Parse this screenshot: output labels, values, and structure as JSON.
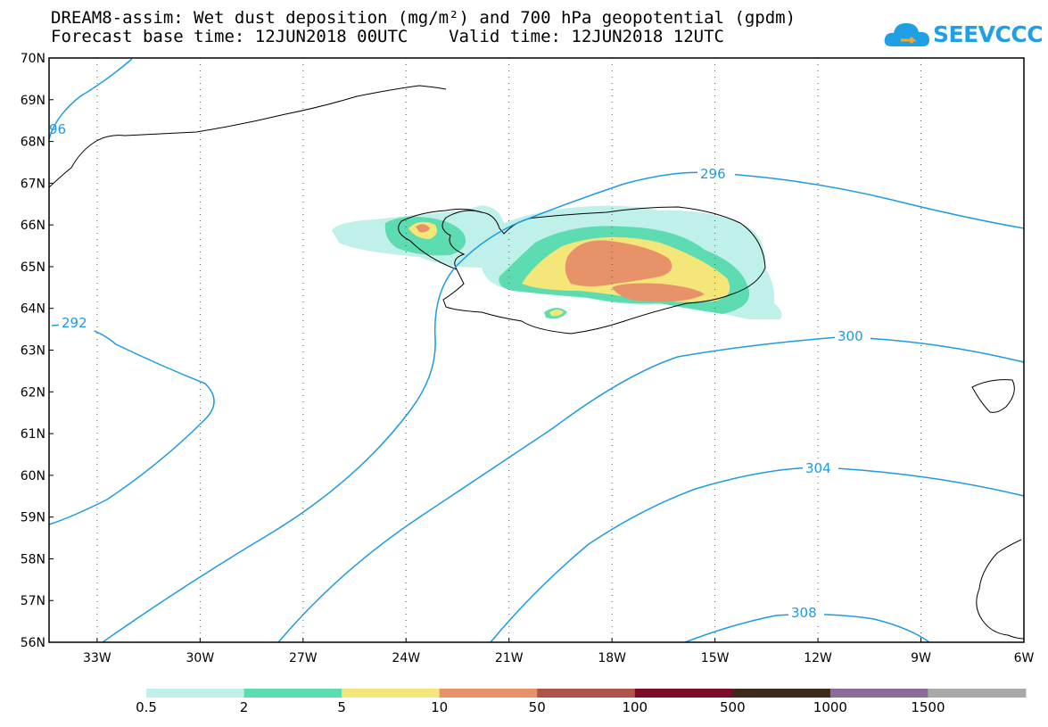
{
  "title": {
    "line1": "DREAM8-assim: Wet dust deposition (mg/m²) and 700 hPa geopotential (gpdm)",
    "line2": "Forecast base time: 12JUN2018 00UTC    Valid time: 12JUN2018 12UTC"
  },
  "logo": {
    "text": "SEEVCCC"
  },
  "map": {
    "lat_labels": [
      "70N",
      "69N",
      "68N",
      "67N",
      "66N",
      "65N",
      "64N",
      "63N",
      "62N",
      "61N",
      "60N",
      "59N",
      "58N",
      "57N",
      "56N"
    ],
    "lon_labels": [
      "33W",
      "30W",
      "27W",
      "24W",
      "21W",
      "18W",
      "15W",
      "12W",
      "9W",
      "6W"
    ],
    "lat_range": [
      56,
      70
    ],
    "lon_range": [
      -34.4,
      -6
    ],
    "contour_labels": [
      "296",
      "292",
      "300",
      "304",
      "308",
      "96"
    ],
    "contour_color": "#1e9be0"
  },
  "legend": {
    "labels": [
      "0.5",
      "2",
      "5",
      "10",
      "50",
      "100",
      "500",
      "1000",
      "1500"
    ],
    "colors": [
      "#bff0ea",
      "#5cdcb0",
      "#f5e67a",
      "#e8926a",
      "#b0544a",
      "#7a0c2a",
      "#3c2a1a",
      "#8e6a9a",
      "#a9a9a9"
    ]
  }
}
